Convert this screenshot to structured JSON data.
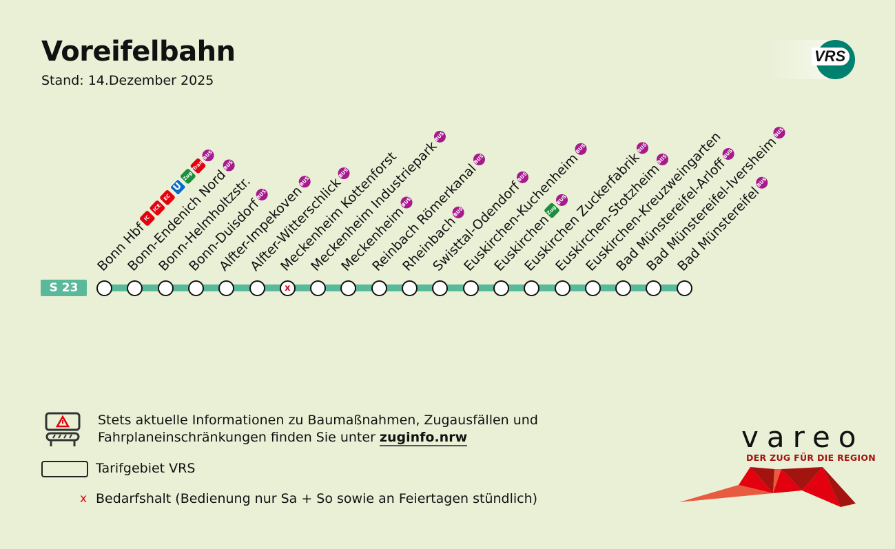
{
  "header": {
    "title": "Voreifelbahn",
    "subtitle": "Stand: 14.Dezember 2025"
  },
  "logos": {
    "vrs": "VRS",
    "vareo": "vareo",
    "vareo_tagline": "DER ZUG FÜR DIE REGION"
  },
  "line": {
    "name": "S 23",
    "color": "#5bb99b"
  },
  "stations": [
    {
      "name": "Bonn Hbf",
      "badges": [
        "IC",
        "ICE",
        "EC",
        "U",
        "Zug",
        "Tram",
        "BUS"
      ]
    },
    {
      "name": "Bonn-Endenich Nord",
      "badges": [
        "BUS"
      ]
    },
    {
      "name": "Bonn-Helmholtzstr.",
      "badges": []
    },
    {
      "name": "Bonn-Duisdorf",
      "badges": [
        "BUS"
      ]
    },
    {
      "name": "Alfter-Impekoven",
      "badges": [
        "BUS"
      ]
    },
    {
      "name": "Alfter-Witterschlick",
      "badges": [
        "BUS"
      ]
    },
    {
      "name": "Meckenheim Kottenforst",
      "badges": [],
      "request_stop": true
    },
    {
      "name": "Meckenheim Industriepark",
      "badges": [
        "BUS"
      ]
    },
    {
      "name": "Meckenheim",
      "badges": [
        "BUS"
      ]
    },
    {
      "name": "Reinbach Römerkanal",
      "badges": [
        "BUS"
      ]
    },
    {
      "name": "Rheinbach",
      "badges": [
        "BUS"
      ]
    },
    {
      "name": "Swisttal-Odendorf",
      "badges": [
        "BUS"
      ]
    },
    {
      "name": "Euskirchen-Kuchenheim",
      "badges": [
        "BUS"
      ]
    },
    {
      "name": "Euskirchen",
      "badges": [
        "Zug",
        "BUS"
      ]
    },
    {
      "name": "Euskirchen Zuckerfabrik",
      "badges": [
        "BUS"
      ]
    },
    {
      "name": "Euskirchen-Stotzheim",
      "badges": [
        "BUS"
      ]
    },
    {
      "name": "Euskirchen-Kreuzweingarten",
      "badges": []
    },
    {
      "name": "Bad Münstereifel-Arloff",
      "badges": [
        "BUS"
      ]
    },
    {
      "name": "Bad Münstereifel-Iversheim",
      "badges": [
        "BUS"
      ]
    },
    {
      "name": "Bad Münstereifel",
      "badges": [
        "BUS"
      ]
    }
  ],
  "legend": {
    "info_line1": "Stets aktuelle Informationen zu Baumaßnahmen, Zugausfällen und",
    "info_line2": "Fahrplaneinschränkungen finden Sie unter ",
    "info_link": "zuginfo.nrw",
    "tarif": "Tarifgebiet VRS",
    "request_stop_symbol": "x",
    "request_stop": "Bedarfshalt (Bedienung nur Sa + So sowie an Feiertagen stündlich)"
  }
}
